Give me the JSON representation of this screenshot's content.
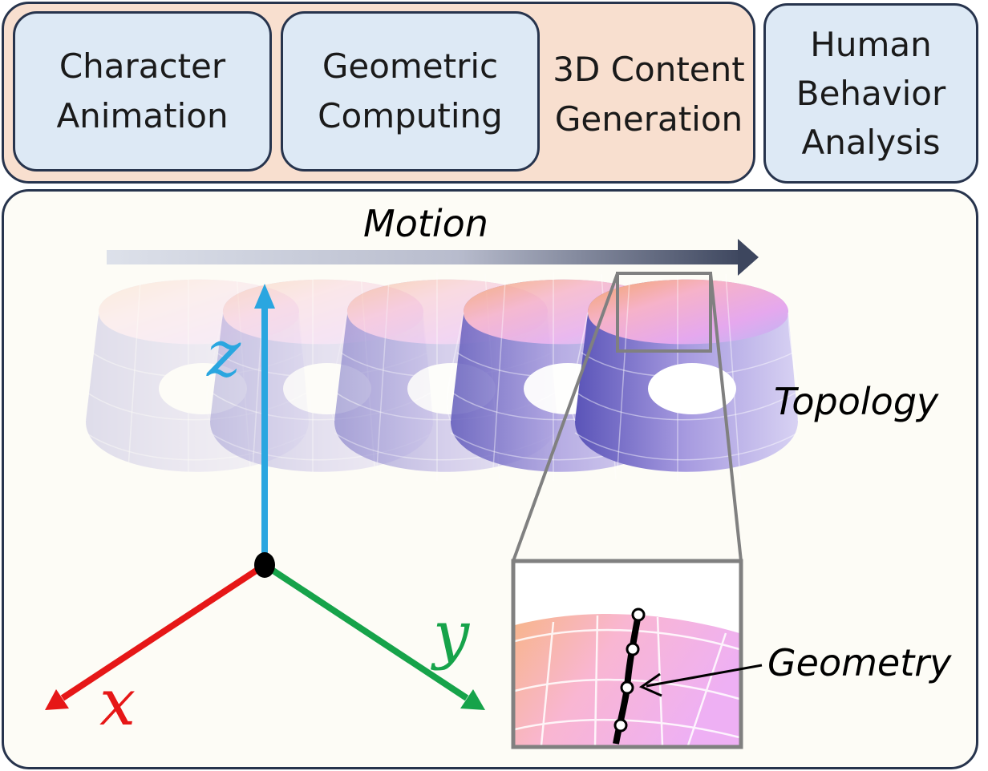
{
  "top_panel": {
    "cards": [
      {
        "label": "Character\nAnimation"
      },
      {
        "label": "Geometric\nComputing"
      }
    ],
    "group_label": "3D Content\nGeneration"
  },
  "side_card": {
    "label": "Human\nBehavior\nAnalysis"
  },
  "diagram": {
    "motion_label": "Motion",
    "topology_label": "Topology",
    "geometry_label": "Geometry",
    "axes": {
      "x": "x",
      "y": "y",
      "z": "z"
    },
    "colors": {
      "x": "#e61717",
      "y": "#16a34a",
      "z": "#2aa6e0",
      "arrow_start": "#d9dde8",
      "arrow_end": "#3d465e"
    }
  }
}
